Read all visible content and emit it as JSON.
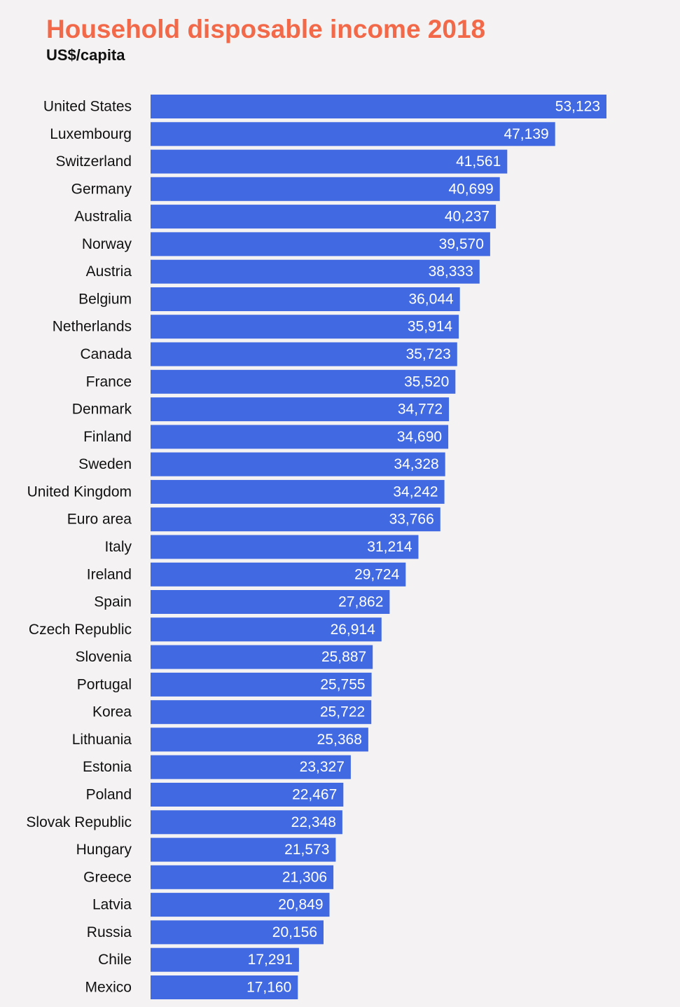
{
  "colors": {
    "title": "#f2694a",
    "bar": "#4169e1",
    "background": "#f4f2f2",
    "value_label": "#ffffff",
    "category_label": "#111111"
  },
  "chart_data": {
    "type": "bar",
    "orientation": "horizontal",
    "title": "Household disposable income 2018",
    "subtitle": "US$/capita",
    "xlabel": "",
    "ylabel": "",
    "grid": false,
    "legend": "none",
    "xlim": [
      0,
      53123
    ],
    "categories": [
      "United States",
      "Luxembourg",
      "Switzerland",
      "Germany",
      "Australia",
      "Norway",
      "Austria",
      "Belgium",
      "Netherlands",
      "Canada",
      "France",
      "Denmark",
      "Finland",
      "Sweden",
      "United Kingdom",
      "Euro area",
      "Italy",
      "Ireland",
      "Spain",
      "Czech Republic",
      "Slovenia",
      "Portugal",
      "Korea",
      "Lithuania",
      "Estonia",
      "Poland",
      "Slovak Republic",
      "Hungary",
      "Greece",
      "Latvia",
      "Russia",
      "Chile",
      "Mexico"
    ],
    "values": [
      53123,
      47139,
      41561,
      40699,
      40237,
      39570,
      38333,
      36044,
      35914,
      35723,
      35520,
      34772,
      34690,
      34328,
      34242,
      33766,
      31214,
      29724,
      27862,
      26914,
      25887,
      25755,
      25722,
      25368,
      23327,
      22467,
      22348,
      21573,
      21306,
      20849,
      20156,
      17291,
      17160
    ],
    "value_labels": [
      "53,123",
      "47,139",
      "41,561",
      "40,699",
      "40,237",
      "39,570",
      "38,333",
      "36,044",
      "35,914",
      "35,723",
      "35,520",
      "34,772",
      "34,690",
      "34,328",
      "34,242",
      "33,766",
      "31,214",
      "29,724",
      "27,862",
      "26,914",
      "25,887",
      "25,755",
      "25,722",
      "25,368",
      "23,327",
      "22,467",
      "22,348",
      "21,573",
      "21,306",
      "20,849",
      "20,156",
      "17,291",
      "17,160"
    ]
  }
}
